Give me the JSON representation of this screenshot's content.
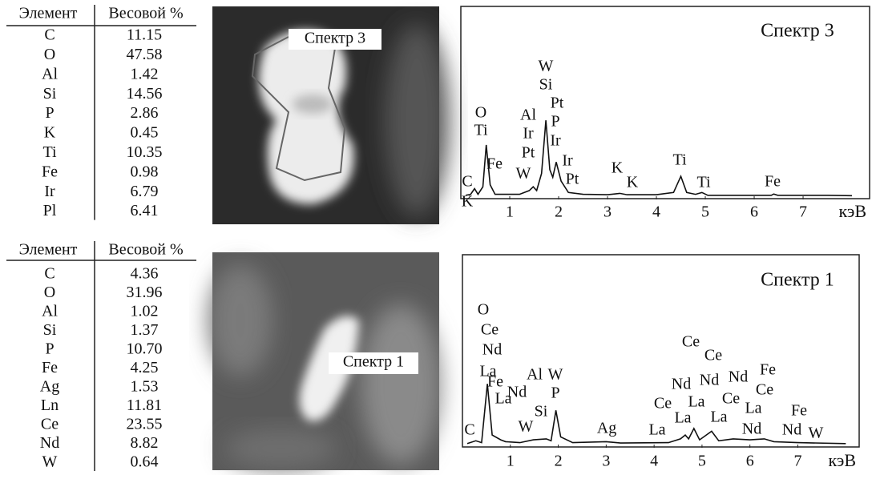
{
  "panels": [
    {
      "table": {
        "header": [
          "Элемент",
          "Весовой %"
        ],
        "rows": [
          [
            "C",
            "11.15"
          ],
          [
            "O",
            "47.58"
          ],
          [
            "Al",
            "1.42"
          ],
          [
            "Si",
            "14.56"
          ],
          [
            "P",
            "2.86"
          ],
          [
            "K",
            "0.45"
          ],
          [
            "Ti",
            "10.35"
          ],
          [
            "Fe",
            "0.98"
          ],
          [
            "Ir",
            "6.79"
          ],
          [
            "Pl",
            "6.41"
          ]
        ]
      },
      "image": {
        "label": "Спектр 3"
      },
      "spectrum": {
        "type": "line",
        "title": "Спектр 3",
        "xlabel": "кэВ",
        "xlim": [
          0,
          8.36
        ],
        "xticks": [
          1,
          2,
          3,
          4,
          5,
          6,
          7
        ],
        "x": [
          0.1,
          0.2,
          0.28,
          0.35,
          0.45,
          0.52,
          0.6,
          0.7,
          0.9,
          1.2,
          1.4,
          1.48,
          1.55,
          1.65,
          1.74,
          1.82,
          1.88,
          1.95,
          2.05,
          2.2,
          2.5,
          3.0,
          3.25,
          3.4,
          4.0,
          4.35,
          4.5,
          4.62,
          4.8,
          4.93,
          5.05,
          6.0,
          6.35,
          6.4,
          6.48,
          7.0,
          7.5,
          8.0
        ],
        "values": [
          0.5,
          1,
          4,
          1,
          5,
          27,
          6,
          1,
          1,
          1,
          3,
          5,
          3,
          12,
          40,
          14,
          10,
          18,
          8,
          2,
          1,
          0.8,
          1.5,
          0.8,
          0.8,
          2,
          10.5,
          2,
          1,
          2,
          0.5,
          0.5,
          0.5,
          1.2,
          0.5,
          0.5,
          0.5,
          0.3
        ],
        "annotations": [
          "C",
          "K",
          "O",
          "Ti",
          "Fe",
          "Al",
          "Ir",
          "Pt",
          "W",
          "W",
          "Si",
          "Pt",
          "P",
          "Ir",
          "Ir",
          "Pt",
          "K",
          "K",
          "Ti",
          "Ti",
          "Fe"
        ]
      }
    },
    {
      "table": {
        "header": [
          "Элемент",
          "Весовой %"
        ],
        "rows": [
          [
            "C",
            "4.36"
          ],
          [
            "O",
            "31.96"
          ],
          [
            "Al",
            "1.02"
          ],
          [
            "Si",
            "1.37"
          ],
          [
            "P",
            "10.70"
          ],
          [
            "Fe",
            "4.25"
          ],
          [
            "Ag",
            "1.53"
          ],
          [
            "Ln",
            "11.81"
          ],
          [
            "Ce",
            "23.55"
          ],
          [
            "Nd",
            "8.82"
          ],
          [
            "W",
            "0.64"
          ]
        ]
      },
      "image": {
        "label": "Спектр 1"
      },
      "spectrum": {
        "type": "line",
        "title": "Спектр 1",
        "xlabel": "кэВ",
        "xlim": [
          0,
          8.28
        ],
        "xticks": [
          1,
          2,
          3,
          4,
          5,
          6,
          7
        ],
        "x": [
          0.1,
          0.28,
          0.4,
          0.52,
          0.62,
          0.8,
          0.9,
          1.2,
          1.48,
          1.75,
          1.85,
          1.95,
          2.05,
          2.3,
          3.0,
          3.3,
          4.3,
          4.55,
          4.65,
          4.72,
          4.83,
          4.95,
          5.2,
          5.35,
          5.65,
          6.0,
          6.3,
          6.5,
          7.0,
          8.0
        ],
        "values": [
          0.5,
          2,
          1,
          32,
          5,
          2.5,
          1.5,
          1,
          2.5,
          3,
          2,
          18,
          4,
          1,
          1.5,
          0.8,
          1,
          3,
          5,
          3,
          8.5,
          2.5,
          7,
          2,
          3,
          2.5,
          3,
          1.5,
          1,
          0.5
        ],
        "annotations": [
          "C",
          "O",
          "Ce",
          "Nd",
          "La",
          "Fe",
          "La",
          "Nd",
          "Al",
          "W",
          "P",
          "Si",
          "W",
          "Ag",
          "La",
          "Ce",
          "Ce",
          "Nd",
          "Nd",
          "Nd",
          "Fe",
          "Ce",
          "La",
          "Ce",
          "Ce",
          "La",
          "La",
          "La",
          "Nd",
          "Fe",
          "Nd",
          "W"
        ]
      }
    }
  ]
}
